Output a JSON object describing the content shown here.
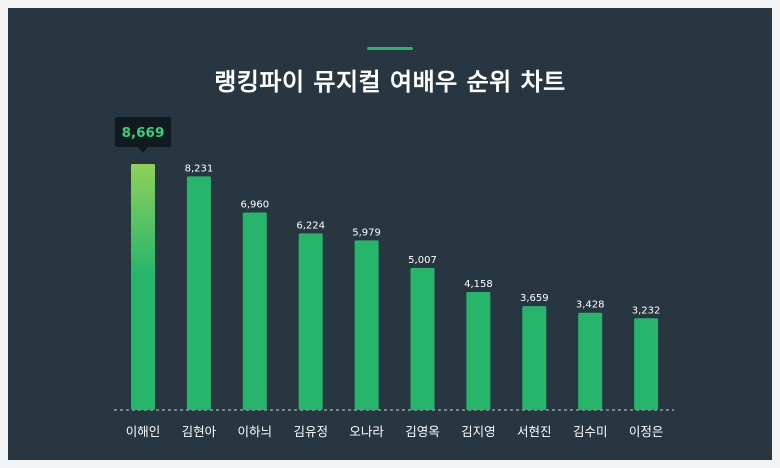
{
  "title": "랭킹파이 뮤지컬 여배우 순위 차트",
  "colors": {
    "background": "#273640",
    "bar": "#27b56c",
    "bar_top_highlight": "#8fd15a",
    "accent": "#27b56c",
    "tooltip_bg": "#111a21",
    "tooltip_text": "#35d27a"
  },
  "highlight": {
    "index": 0,
    "label": "8,669"
  },
  "chart_data": {
    "type": "bar",
    "title": "랭킹파이 뮤지컬 여배우 순위 차트",
    "categories": [
      "이해인",
      "김현아",
      "이하늬",
      "김유정",
      "오나라",
      "김영옥",
      "김지영",
      "서현진",
      "김수미",
      "이정은"
    ],
    "values": [
      8669,
      8231,
      6960,
      6224,
      5979,
      5007,
      4158,
      3659,
      3428,
      3232
    ],
    "value_labels": [
      "8,669",
      "8,231",
      "6,960",
      "6,224",
      "5,979",
      "5,007",
      "4,158",
      "3,659",
      "3,428",
      "3,232"
    ],
    "xlabel": "",
    "ylabel": "",
    "grid": false,
    "legend": "none"
  }
}
